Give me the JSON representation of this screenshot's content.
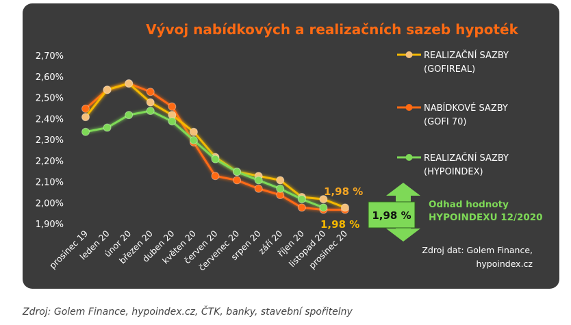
{
  "chart_data": {
    "type": "line",
    "title": "Vývoj nabídkových a realizačních sazeb hypoték",
    "categories": [
      "prosinec 19",
      "leden 20",
      "únor 20",
      "březen 20",
      "duben 20",
      "květen 20",
      "červen 20",
      "červenec 20",
      "srpen 20",
      "září 20",
      "říjen 20",
      "listopad 20",
      "prosinec 20"
    ],
    "y_tick_labels": [
      "2,70%",
      "2,60%",
      "2,50%",
      "2,40%",
      "2,30%",
      "2,20%",
      "2,10%",
      "2,00%",
      "1,90%"
    ],
    "ylim": [
      1.9,
      2.7
    ],
    "grid": false,
    "legend_position": "right",
    "series": [
      {
        "name": "REALIZAČNÍ SAZBY (GOFIREAL)",
        "legend_lines": [
          "REALIZAČNÍ SAZBY",
          "(GOFIREAL)"
        ],
        "color": "#f5b800",
        "marker_color": "#f5c07a",
        "values": [
          2.41,
          2.54,
          2.57,
          2.48,
          2.42,
          2.34,
          2.22,
          2.15,
          2.13,
          2.11,
          2.03,
          2.02,
          1.98
        ]
      },
      {
        "name": "NABÍDKOVÉ SAZBY (GOFI 70)",
        "legend_lines": [
          "NABÍDKOVÉ SAZBY",
          "(GOFI 70)"
        ],
        "color": "#ff6a13",
        "marker_color": "#ff6a13",
        "values": [
          2.45,
          2.54,
          2.57,
          2.53,
          2.46,
          2.29,
          2.13,
          2.11,
          2.07,
          2.04,
          1.98,
          1.97,
          1.97
        ]
      },
      {
        "name": "REALIZAČNÍ SAZBY (HYPOINDEX)",
        "legend_lines": [
          "REALIZAČNÍ SAZBY",
          "(HYPOINDEX)"
        ],
        "color": "#7ed957",
        "marker_color": "#7ed957",
        "values": [
          2.34,
          2.36,
          2.42,
          2.44,
          2.39,
          2.3,
          2.21,
          2.15,
          2.11,
          2.07,
          2.02,
          1.98,
          null
        ]
      }
    ],
    "annotations": {
      "top_label": "1,98 %",
      "bottom_label": "1,98 %",
      "estimate_box_value": "1,98 %",
      "estimate_caption_lines": [
        "Odhad hodnoty",
        "HYPOINDEXU 12/2020"
      ],
      "source_lines": [
        "Zdroj dat: Golem Finance,",
        "hypoindex.cz"
      ]
    },
    "colors": {
      "title": "#ff6a13",
      "panel": "#3b3b3b",
      "arrow": "#7ed957",
      "box": "#7ed957",
      "caption": "#7ed957",
      "top_label": "#f5a623",
      "bottom_label": "#f5b800"
    }
  },
  "footer": {
    "source": "Zdroj: Golem Finance, hypoindex.cz, ČTK, banky, stavební spořitelny"
  }
}
